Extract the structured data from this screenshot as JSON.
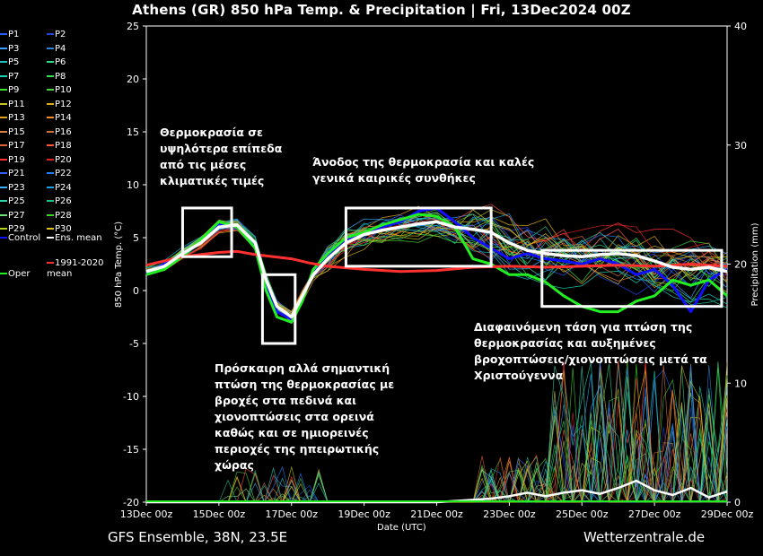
{
  "title": "Athens  (GR)  850 hPa Temp. & Precipitation | Fri, 13Dec2024 00Z",
  "footer": {
    "left": "GFS Ensemble, 38N, 23.5E",
    "right": "Wetterzentrale.de"
  },
  "annotations": {
    "upper_left": [
      "Θερμοκρασία σε",
      "υψηλότερα επίπεδα",
      "από τις μέσες",
      "κλιματικές τιμές"
    ],
    "top_middle": [
      "Άνοδος της θερμοκρασία και καλές",
      "γενικά καιρικές συνθήκες"
    ],
    "bottom_middle": [
      "Πρόσκαιρη αλλά σημαντική",
      "πτώση της θερμοκρασίας με",
      "βροχές στα πεδινά και",
      "χιονοπτώσεις στα ορεινά",
      "καθώς και σε ημιορεινές",
      "περιοχές της ηπειρωτικής",
      "χώρας"
    ],
    "right": [
      "Διαφαινόμενη τάση για πτώση της",
      "θερμοκρασίας και αυξημένες",
      "βροχοπτώσεις/χιονοπτώσεις μετά τα",
      "Χριστούγεννα"
    ]
  },
  "legend": [
    {
      "label": "P1",
      "color": "#1f5fff"
    },
    {
      "label": "P2",
      "color": "#2b3fe0"
    },
    {
      "label": "P3",
      "color": "#3aa0ff"
    },
    {
      "label": "P4",
      "color": "#2e7fd0"
    },
    {
      "label": "P5",
      "color": "#20c0c0"
    },
    {
      "label": "P6",
      "color": "#2bd98a"
    },
    {
      "label": "P7",
      "color": "#19d4b0"
    },
    {
      "label": "P8",
      "color": "#30e050"
    },
    {
      "label": "P9",
      "color": "#40e030"
    },
    {
      "label": "P10",
      "color": "#50d040"
    },
    {
      "label": "P11",
      "color": "#c8c020"
    },
    {
      "label": "P12",
      "color": "#d8b010"
    },
    {
      "label": "P13",
      "color": "#e0a020"
    },
    {
      "label": "P14",
      "color": "#f09020"
    },
    {
      "label": "P15",
      "color": "#e08040"
    },
    {
      "label": "P16",
      "color": "#d07040"
    },
    {
      "label": "P17",
      "color": "#e06030"
    },
    {
      "label": "P18",
      "color": "#ff5040"
    },
    {
      "label": "P19",
      "color": "#ff3030"
    },
    {
      "label": "P20",
      "color": "#e02020"
    },
    {
      "label": "P21",
      "color": "#3060ff"
    },
    {
      "label": "P22",
      "color": "#2080ff"
    },
    {
      "label": "P23",
      "color": "#3ab0ff"
    },
    {
      "label": "P24",
      "color": "#20a0e0"
    },
    {
      "label": "P25",
      "color": "#30d0b0"
    },
    {
      "label": "P26",
      "color": "#20c090"
    },
    {
      "label": "P27",
      "color": "#70e070"
    },
    {
      "label": "P28",
      "color": "#40d030"
    },
    {
      "label": "P29",
      "color": "#b0d020"
    },
    {
      "label": "P30",
      "color": "#e0c020"
    },
    {
      "label": "Control",
      "color": "#1010ff"
    },
    {
      "label": "Ens. mean",
      "color": "#ffffff"
    },
    {
      "label": "Oper",
      "color": "#22ee22"
    },
    {
      "label": "1991-2020 mean",
      "color": "#ff3030"
    }
  ],
  "chart_data": {
    "type": "line",
    "x_axis": {
      "label": "Date (UTC)",
      "ticks": [
        "13Dec 00z",
        "15Dec 00z",
        "17Dec 00z",
        "19Dec 00z",
        "21Dec 00z",
        "23Dec 00z",
        "25Dec 00z",
        "27Dec 00z",
        "29Dec 00z"
      ],
      "range_days": [
        0,
        16
      ]
    },
    "y_axis_left": {
      "label": "850 hPa Temp. (°C)",
      "range": [
        -20,
        25
      ],
      "ticks": [
        25,
        20,
        15,
        10,
        5,
        0,
        -5,
        -10,
        -15,
        -20
      ]
    },
    "y_axis_right": {
      "label": "Precipitation (mm)",
      "range": [
        0,
        40
      ],
      "ticks": [
        40,
        30,
        20,
        10,
        0
      ]
    },
    "grid": false,
    "series": [
      {
        "name": "Ens. mean",
        "color": "#ffffff",
        "points": [
          [
            0,
            1.8
          ],
          [
            0.5,
            2.3
          ],
          [
            1,
            3.5
          ],
          [
            1.5,
            4.5
          ],
          [
            2,
            6
          ],
          [
            2.5,
            6.2
          ],
          [
            3,
            4.5
          ],
          [
            3.3,
            1
          ],
          [
            3.6,
            -1.5
          ],
          [
            4,
            -2.5
          ],
          [
            4.3,
            -0.5
          ],
          [
            4.6,
            1.5
          ],
          [
            5,
            3
          ],
          [
            5.5,
            4.5
          ],
          [
            6,
            5.3
          ],
          [
            6.5,
            5.7
          ],
          [
            7,
            6
          ],
          [
            7.5,
            6.3
          ],
          [
            8,
            6.5
          ],
          [
            8.5,
            6
          ],
          [
            9,
            5.8
          ],
          [
            9.5,
            5.5
          ],
          [
            10,
            4.5
          ],
          [
            10.5,
            3.8
          ],
          [
            11,
            3.5
          ],
          [
            11.5,
            3.3
          ],
          [
            12,
            3.2
          ],
          [
            12.5,
            3.4
          ],
          [
            13,
            3.5
          ],
          [
            13.5,
            3.3
          ],
          [
            14,
            2.8
          ],
          [
            14.5,
            2.2
          ],
          [
            15,
            2.0
          ],
          [
            15.5,
            2.2
          ],
          [
            16,
            1.8
          ]
        ]
      },
      {
        "name": "Oper",
        "color": "#22ee22",
        "points": [
          [
            0,
            1.5
          ],
          [
            0.5,
            2
          ],
          [
            1,
            3.2
          ],
          [
            1.5,
            4.8
          ],
          [
            2,
            6.5
          ],
          [
            2.5,
            6
          ],
          [
            3,
            4
          ],
          [
            3.3,
            0
          ],
          [
            3.6,
            -2.5
          ],
          [
            4,
            -3
          ],
          [
            4.3,
            -1
          ],
          [
            4.6,
            2
          ],
          [
            5,
            3.5
          ],
          [
            5.5,
            5
          ],
          [
            6,
            5.5
          ],
          [
            6.5,
            6.2
          ],
          [
            7,
            6.7
          ],
          [
            7.5,
            7.2
          ],
          [
            8,
            7
          ],
          [
            8.5,
            6
          ],
          [
            9,
            3
          ],
          [
            9.5,
            2.5
          ],
          [
            10,
            1.5
          ],
          [
            10.5,
            1.5
          ],
          [
            11,
            0.8
          ],
          [
            11.5,
            -0.5
          ],
          [
            12,
            -1.5
          ],
          [
            12.5,
            -2
          ],
          [
            13,
            -2
          ],
          [
            13.5,
            -1
          ],
          [
            14,
            -0.5
          ],
          [
            14.5,
            1
          ],
          [
            15,
            0.5
          ],
          [
            15.5,
            1
          ],
          [
            16,
            -0.5
          ]
        ]
      },
      {
        "name": "Control",
        "color": "#1010ff",
        "points": [
          [
            0,
            1.6
          ],
          [
            0.5,
            2.5
          ],
          [
            1,
            3.4
          ],
          [
            1.5,
            4.5
          ],
          [
            2,
            6.2
          ],
          [
            2.5,
            6
          ],
          [
            3,
            4.2
          ],
          [
            3.3,
            0.5
          ],
          [
            3.6,
            -2
          ],
          [
            4,
            -2.7
          ],
          [
            4.3,
            -0.8
          ],
          [
            4.6,
            1.8
          ],
          [
            5,
            3.2
          ],
          [
            5.5,
            4.8
          ],
          [
            6,
            5.5
          ],
          [
            6.5,
            6
          ],
          [
            7,
            6.5
          ],
          [
            7.5,
            7.5
          ],
          [
            8,
            7.8
          ],
          [
            8.5,
            6.5
          ],
          [
            9,
            5
          ],
          [
            9.5,
            4
          ],
          [
            10,
            3
          ],
          [
            10.5,
            3.5
          ],
          [
            11,
            3
          ],
          [
            11.5,
            2.8
          ],
          [
            12,
            2.5
          ],
          [
            12.5,
            3
          ],
          [
            13,
            2.5
          ],
          [
            13.5,
            1.5
          ],
          [
            14,
            2
          ],
          [
            14.5,
            0.5
          ],
          [
            15,
            -2
          ],
          [
            15.5,
            1
          ],
          [
            16,
            2
          ]
        ]
      },
      {
        "name": "1991-2020 mean",
        "color": "#ff3030",
        "points": [
          [
            0,
            2.4
          ],
          [
            1,
            3.2
          ],
          [
            2,
            3.6
          ],
          [
            2.5,
            3.7
          ],
          [
            3,
            3.4
          ],
          [
            3.5,
            3.2
          ],
          [
            4,
            3.0
          ],
          [
            4.5,
            2.6
          ],
          [
            5,
            2.3
          ],
          [
            6,
            2.0
          ],
          [
            7,
            1.8
          ],
          [
            8,
            1.9
          ],
          [
            9,
            2.2
          ],
          [
            10,
            2.3
          ],
          [
            11,
            2.2
          ],
          [
            12,
            2.3
          ],
          [
            13,
            2.4
          ],
          [
            14,
            2.3
          ],
          [
            15,
            2.5
          ],
          [
            16,
            2.3
          ]
        ]
      }
    ],
    "precipitation_mean": {
      "color": "#ffffff",
      "points": [
        [
          0,
          0
        ],
        [
          4,
          0
        ],
        [
          8,
          0
        ],
        [
          9.5,
          0.3
        ],
        [
          10,
          0.5
        ],
        [
          10.5,
          0.8
        ],
        [
          11,
          0.5
        ],
        [
          11.5,
          0.8
        ],
        [
          12,
          1
        ],
        [
          12.5,
          0.7
        ],
        [
          13,
          1.2
        ],
        [
          13.5,
          1.8
        ],
        [
          14,
          1
        ],
        [
          14.5,
          0.6
        ],
        [
          15,
          1.2
        ],
        [
          15.5,
          0.4
        ],
        [
          16,
          0.9
        ]
      ]
    },
    "highlight_boxes": [
      {
        "x_days": [
          1.0,
          2.35
        ],
        "y_c": [
          3.2,
          7.8
        ]
      },
      {
        "x_days": [
          3.2,
          4.1
        ],
        "y_c": [
          -5,
          1.5
        ]
      },
      {
        "x_days": [
          5.5,
          9.5
        ],
        "y_c": [
          2.3,
          7.8
        ]
      },
      {
        "x_days": [
          10.9,
          15.85
        ],
        "y_c": [
          -1.5,
          3.8
        ]
      }
    ]
  }
}
